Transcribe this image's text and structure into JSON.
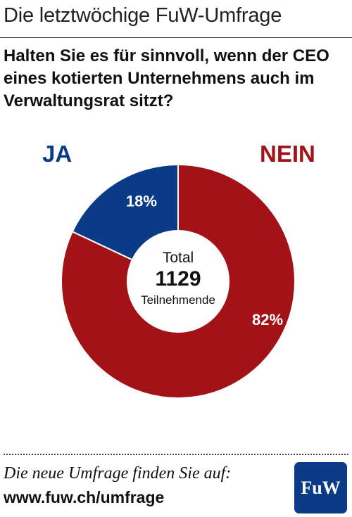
{
  "header": {
    "title": "Die letztwöchige FuW-Umfrage"
  },
  "question": "Halten Sie es für sinnvoll, wenn der CEO eines kotierten Unternehmens auch im Verwaltungsrat sitzt?",
  "colors": {
    "ja": "#0b3a86",
    "nein": "#a31217",
    "divider": "#ffffff"
  },
  "chart_data": {
    "type": "pie",
    "variant": "donut",
    "categories": [
      "JA",
      "NEIN"
    ],
    "values": [
      18,
      82
    ],
    "value_labels": [
      "18%",
      "82%"
    ],
    "center": {
      "line1": "Total",
      "line2": "1129",
      "line3": "Teilnehmende"
    }
  },
  "footer": {
    "cta": "Die neue Umfrage finden Sie auf:",
    "url": "www.fuw.ch/umfrage",
    "logo_text": "FuW"
  }
}
